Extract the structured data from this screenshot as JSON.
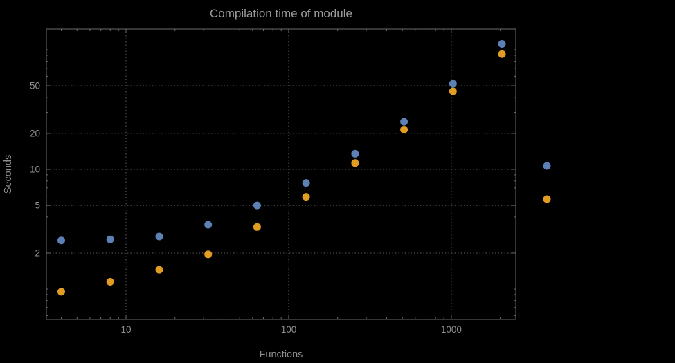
{
  "window": {
    "background": "#000000"
  },
  "colors": {
    "background": "#000000",
    "frame": "#6b6b6b",
    "grid": "#5c5c5c",
    "tick": "#6b6b6b",
    "text": "#8f8f8f",
    "title": "#9c9c9c",
    "blue": "#5e81b5",
    "orange": "#e19c24"
  },
  "chart_data": {
    "type": "scatter",
    "title": "Compilation time of module",
    "xlabel": "Functions",
    "ylabel": "Seconds",
    "xscale": "log",
    "yscale": "log",
    "xlim": [
      3.24,
      2490
    ],
    "ylim": [
      0.557,
      149
    ],
    "grid": "dotted",
    "legend_position": "right-outside",
    "x": [
      4,
      8,
      16,
      32,
      64,
      128,
      256,
      512,
      1024,
      2048
    ],
    "series": [
      {
        "name": "blue-series",
        "color": "#5e81b5",
        "values": [
          2.55,
          2.6,
          2.75,
          3.45,
          5.0,
          7.7,
          13.5,
          25,
          52,
          112
        ]
      },
      {
        "name": "orange-series",
        "color": "#e19c24",
        "values": [
          0.95,
          1.15,
          1.45,
          1.95,
          3.3,
          5.9,
          11.3,
          21.5,
          45,
          92
        ]
      }
    ],
    "xticks": [
      10,
      100,
      1000
    ],
    "xtick_labels": [
      "10",
      "100",
      "1000"
    ],
    "yticks": [
      2,
      5,
      10,
      20,
      50
    ],
    "ytick_labels": [
      "2",
      "5",
      "10",
      "20",
      "50"
    ]
  },
  "legend": {
    "markers": [
      {
        "name": "blue-legend-marker",
        "color": "#5e81b5"
      },
      {
        "name": "orange-legend-marker",
        "color": "#e19c24"
      }
    ]
  }
}
